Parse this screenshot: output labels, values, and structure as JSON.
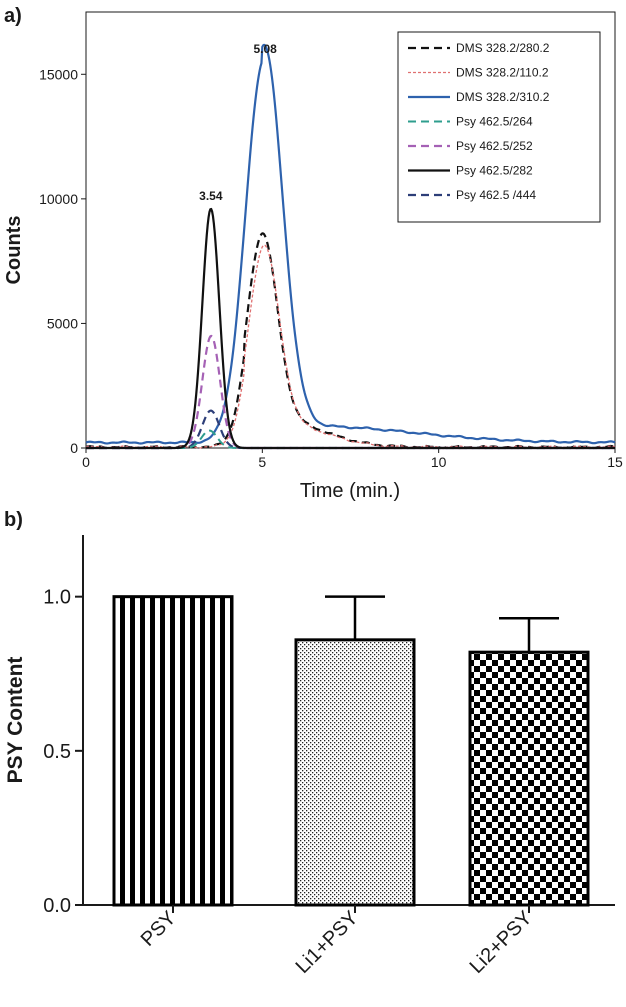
{
  "chart_data": [
    {
      "panel_label": "a)",
      "type": "line",
      "xlabel": "Time (min.)",
      "ylabel": "Counts",
      "xlim": [
        0,
        15
      ],
      "ylim": [
        0,
        17500
      ],
      "xticks": [
        0,
        5,
        10,
        15
      ],
      "yticks": [
        0,
        5000,
        10000,
        15000
      ],
      "legend_position": "top-right",
      "annotations": [
        {
          "text": "3.54",
          "x": 3.54,
          "y": 9600
        },
        {
          "text": "5.08",
          "x": 5.08,
          "y": 15500
        }
      ],
      "series": [
        {
          "name": "DMS 328.2/280.2",
          "color": "#111111",
          "dash": "8,5",
          "width": 2.2,
          "peaks": [
            {
              "center": 5.0,
              "height": 7700,
              "sigma": 0.42
            }
          ],
          "tail": [
            {
              "center": 5.6,
              "height": 1000,
              "sigma": 1.2,
              "min_x": 4.5
            }
          ],
          "baseline": 40
        },
        {
          "name": "DMS 328.2/110.2",
          "color": "#e07070",
          "dash": "3,2",
          "width": 1.3,
          "peaks": [
            {
              "center": 5.05,
              "height": 7300,
              "sigma": 0.42
            }
          ],
          "tail": [
            {
              "center": 5.6,
              "height": 900,
              "sigma": 1.2,
              "min_x": 4.5
            }
          ],
          "baseline": 40
        },
        {
          "name": "DMS 328.2/310.2",
          "color": "#2e62ad",
          "dash": "",
          "width": 2.2,
          "peaks": [
            {
              "center": 5.05,
              "height": 15400,
              "sigma": 0.52
            }
          ],
          "tail": [
            {
              "center": 6.5,
              "height": 650,
              "sigma": 2.8,
              "min_x": 5.0
            }
          ],
          "baseline": 220
        },
        {
          "name": "Psy 462.5/264",
          "color": "#2e9e8e",
          "dash": "8,5",
          "width": 2,
          "peaks": [
            {
              "center": 3.5,
              "height": 700,
              "sigma": 0.22
            }
          ],
          "baseline": 0
        },
        {
          "name": "Psy 462.5/252",
          "color": "#a561b5",
          "dash": "8,5",
          "width": 2.2,
          "peaks": [
            {
              "center": 3.55,
              "height": 4500,
              "sigma": 0.25
            }
          ],
          "baseline": 0
        },
        {
          "name": "Psy 462.5/282",
          "color": "#111111",
          "dash": "",
          "width": 2.2,
          "peaks": [
            {
              "center": 3.54,
              "height": 9600,
              "sigma": 0.24
            }
          ],
          "baseline": 0
        },
        {
          "name": "Psy 462.5 /444",
          "color": "#2d3e78",
          "dash": "8,5",
          "width": 2.2,
          "peaks": [
            {
              "center": 3.54,
              "height": 1500,
              "sigma": 0.24
            }
          ],
          "baseline": 0
        }
      ]
    },
    {
      "panel_label": "b)",
      "type": "bar",
      "ylabel": "PSY Content",
      "ylim": [
        0,
        1.2
      ],
      "yticks": [
        "0.0",
        "0.5",
        "1.0"
      ],
      "categories": [
        "PSY",
        "Li1+PSY",
        "Li2+PSY"
      ],
      "values": [
        1.0,
        0.86,
        0.82
      ],
      "error_upper": [
        0.0,
        0.14,
        0.11
      ],
      "patterns": [
        "vertical-stripes",
        "dots",
        "checkerboard"
      ]
    }
  ]
}
